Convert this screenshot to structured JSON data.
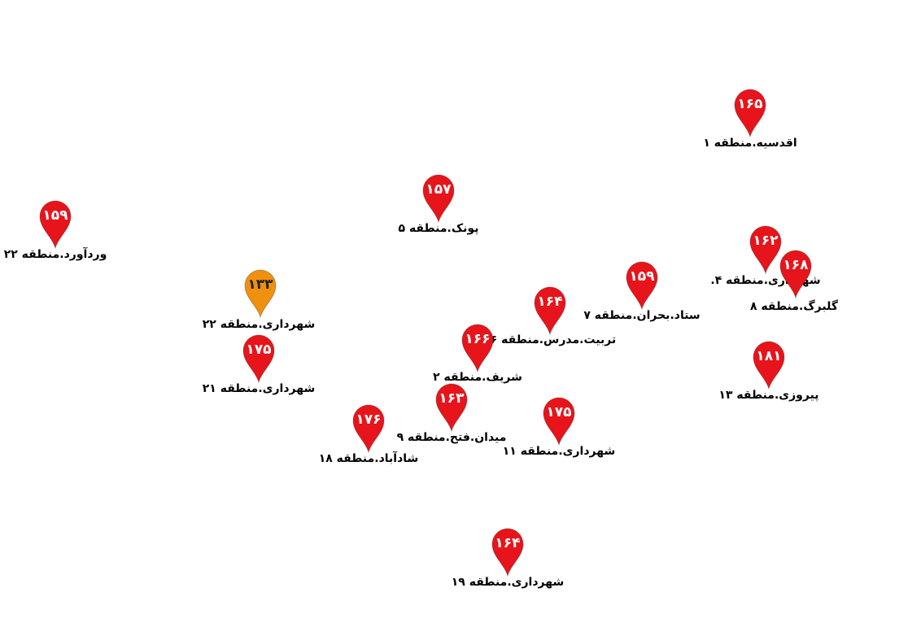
{
  "colors": {
    "default_marker": "#e8141b",
    "highlight_marker": "#f0900f"
  },
  "markers": [
    {
      "value": "۱۶۵",
      "label": "اقدسیه.منطقه ۱",
      "color": "red"
    },
    {
      "value": "۱۵۷",
      "label": "پونک.منطقه ۵",
      "color": "red"
    },
    {
      "value": "۱۵۹",
      "label": "وردآورد.منطقه ۲۲",
      "color": "red"
    },
    {
      "value": "۱۶۲",
      "label": "شهرداری.منطقه ۴.",
      "color": "red"
    },
    {
      "value": "۱۶۸",
      "label": "گلبرگ.منطقه ۸",
      "color": "red"
    },
    {
      "value": "۱۵۹",
      "label": "ستاد.بحران.منطقه ۷",
      "color": "red"
    },
    {
      "value": "۱۶۴",
      "label": "تربیت.مدرس.منطقه ۶",
      "color": "red"
    },
    {
      "value": "۱۳۳",
      "label": "شهرداری.منطقه ۲۲",
      "color": "orange"
    },
    {
      "value": "۱۷۵",
      "label": "شهرداری.منطقه ۲۱",
      "color": "red"
    },
    {
      "value": "۱۶۶",
      "label": "شریف.منطقه ۲",
      "color": "red"
    },
    {
      "value": "۱۸۱",
      "label": "پیروزی.منطقه ۱۳",
      "color": "red"
    },
    {
      "value": "۱۶۳",
      "label": "میدان.فتح.منطقه ۹",
      "color": "red"
    },
    {
      "value": "۱۷۵",
      "label": "شهرداری.منطقه ۱۱",
      "color": "red"
    },
    {
      "value": "۱۷۶",
      "label": "شادآباد.منطقه ۱۸",
      "color": "red"
    },
    {
      "value": "۱۶۴",
      "label": "شهرداری.منطقه ۱۹",
      "color": "red"
    }
  ]
}
